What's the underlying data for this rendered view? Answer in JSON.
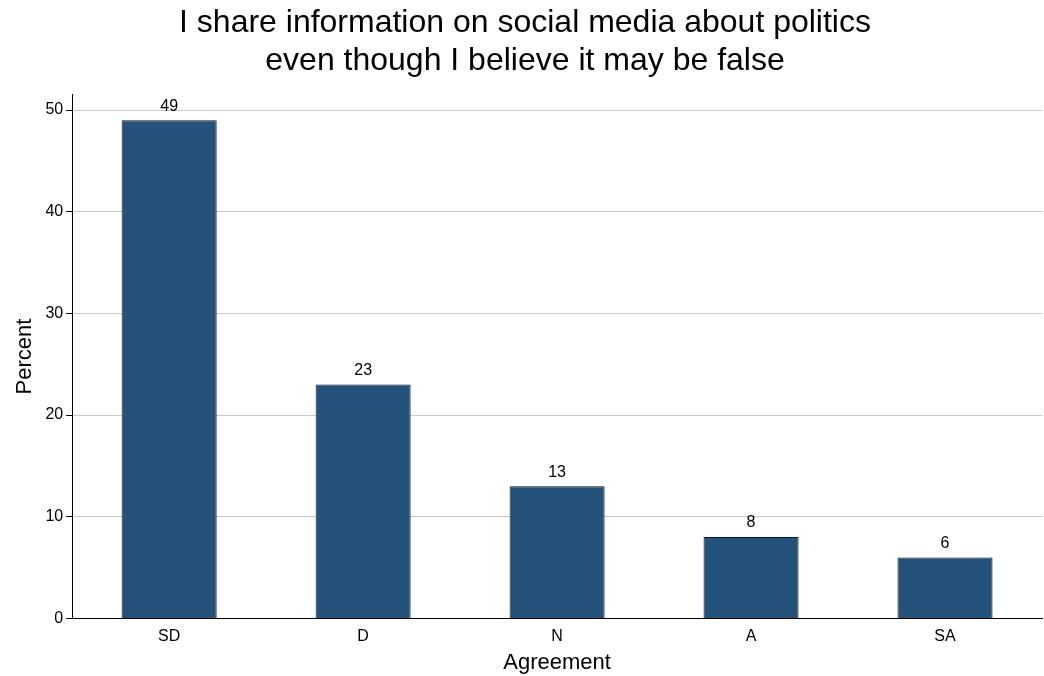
{
  "chart_data": {
    "type": "bar",
    "title": "I share information on social media about politics\neven though I believe it may be false",
    "xlabel": "Agreement",
    "ylabel": "Percent",
    "categories": [
      "SD",
      "D",
      "N",
      "A",
      "SA"
    ],
    "values": [
      49,
      23,
      13,
      8,
      6
    ],
    "color": "#24527a",
    "ylim": [
      0,
      51.5
    ],
    "yticks": [
      0,
      10,
      20,
      30,
      40,
      50
    ],
    "grid": "y",
    "data_labels": true
  }
}
